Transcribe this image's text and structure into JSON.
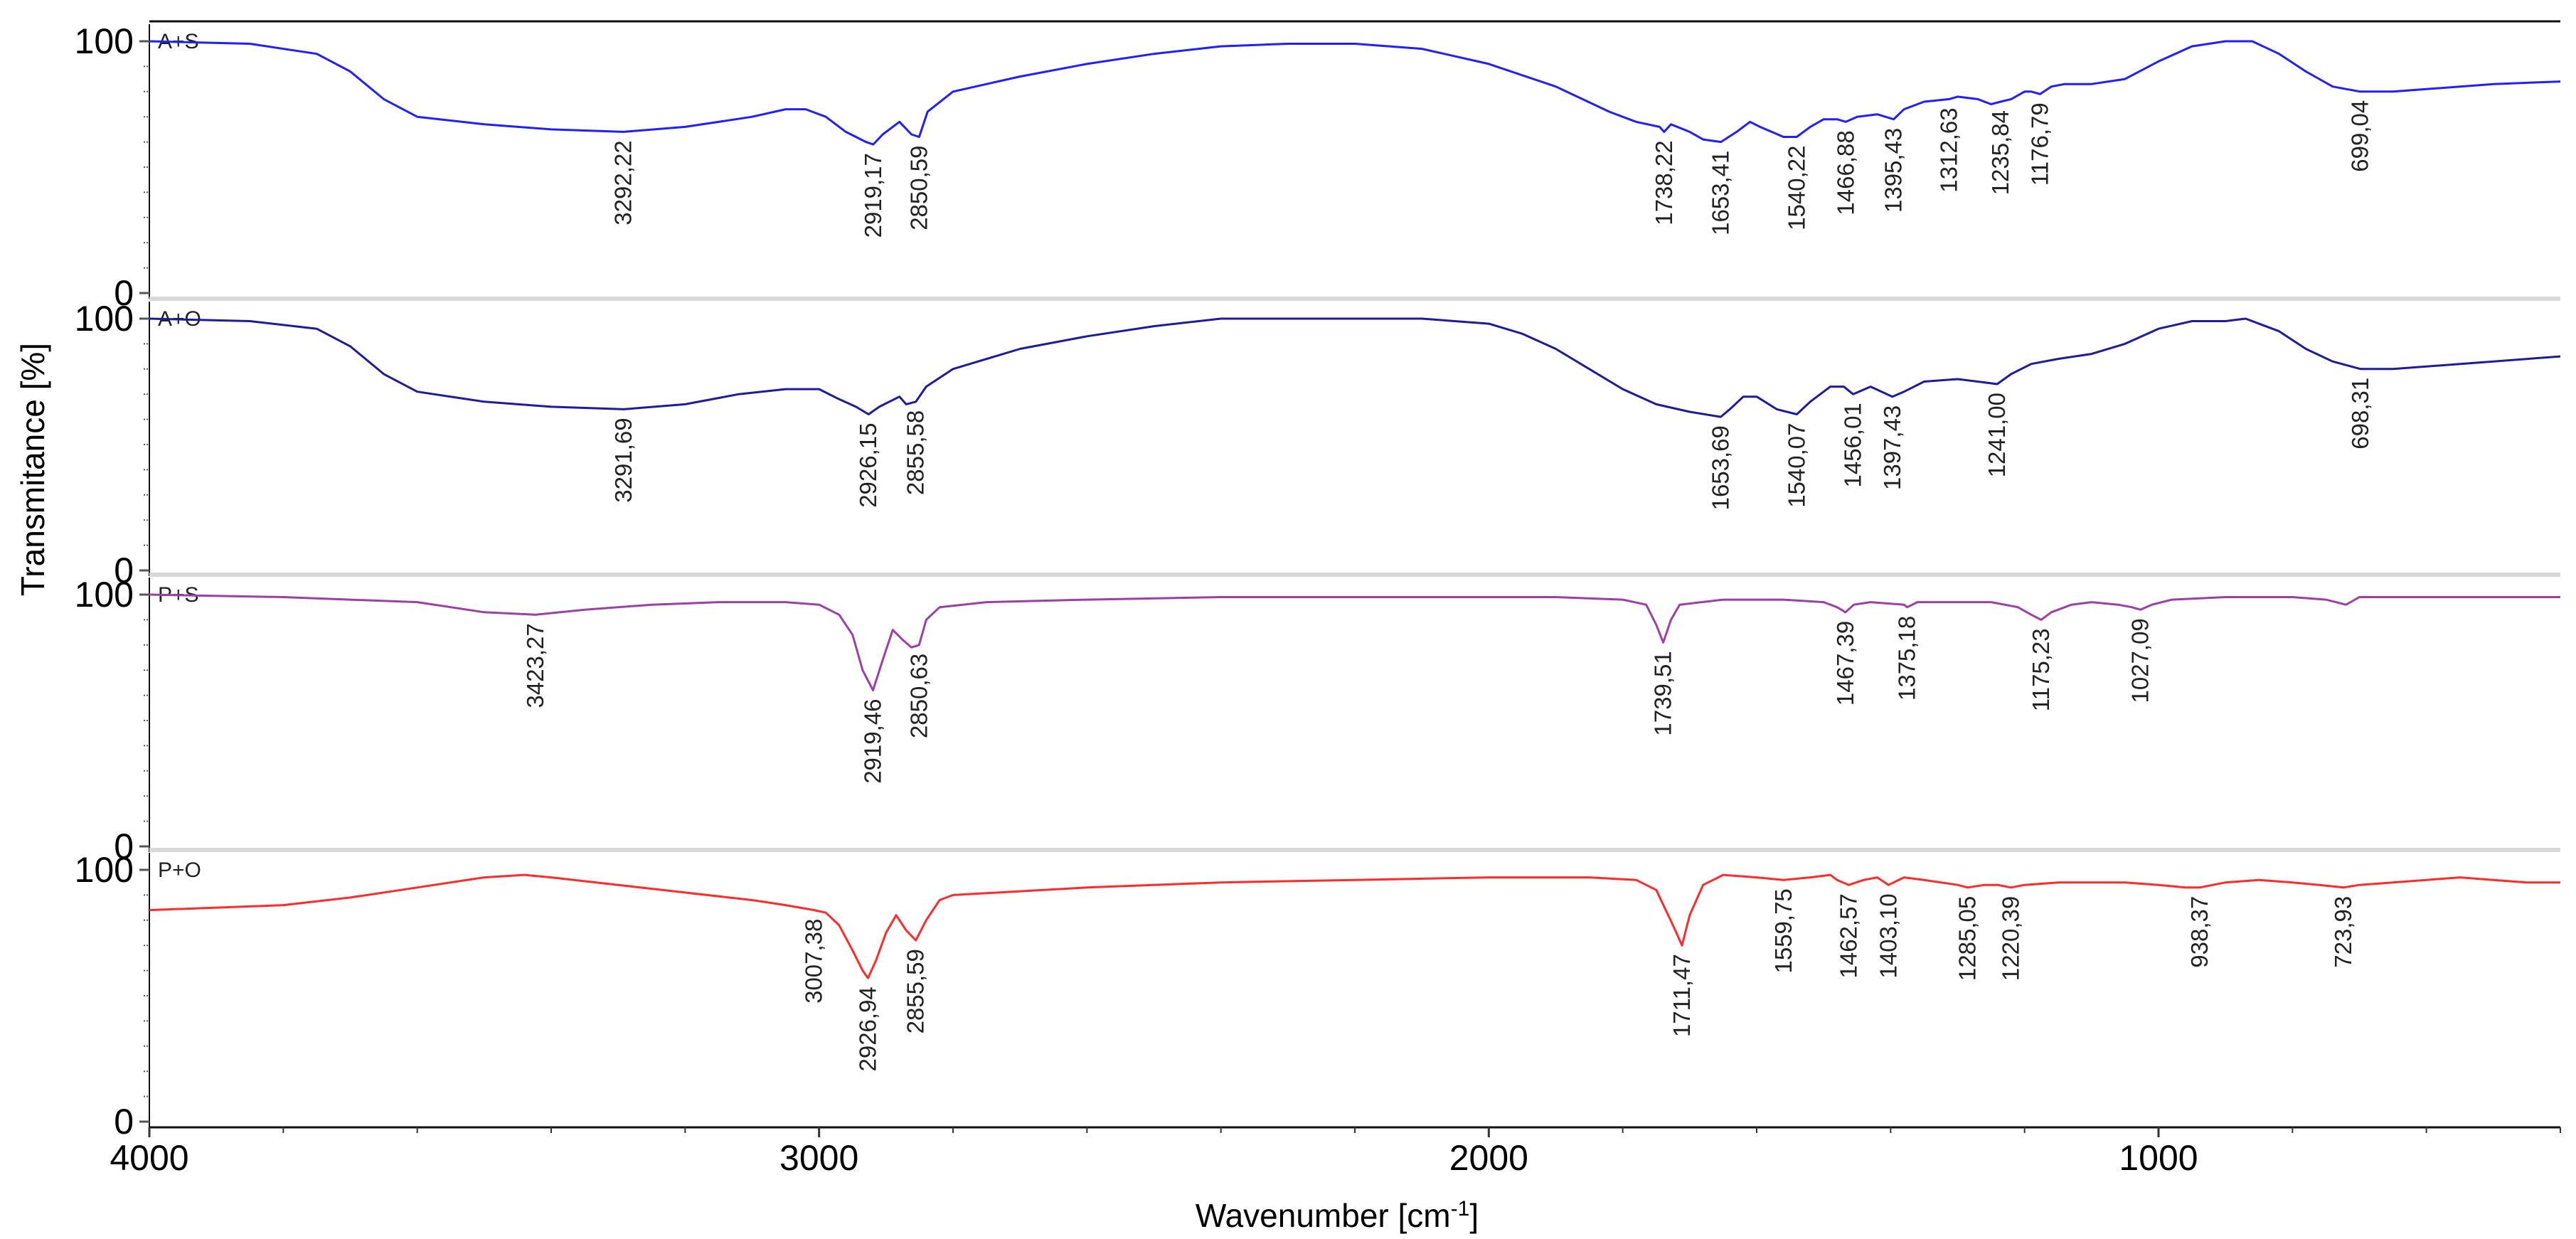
{
  "chart_data": {
    "type": "line",
    "xlabel": "Wavenumber [cm",
    "xlabel_sup": "-1",
    "xlabel_close": "]",
    "ylabel": "Transmitance [%]",
    "xlim": [
      4000,
      400
    ],
    "xticks": [
      4000,
      3000,
      2000,
      1000
    ],
    "yticks": [
      0,
      100
    ],
    "grid": false,
    "panels": [
      {
        "name": "A+S",
        "color": "#1f1fff",
        "points": [
          [
            4000,
            100
          ],
          [
            3850,
            99
          ],
          [
            3750,
            95
          ],
          [
            3700,
            88
          ],
          [
            3650,
            77
          ],
          [
            3600,
            70
          ],
          [
            3500,
            67
          ],
          [
            3400,
            65
          ],
          [
            3292.22,
            64
          ],
          [
            3200,
            66
          ],
          [
            3100,
            70
          ],
          [
            3050,
            73
          ],
          [
            3020,
            73
          ],
          [
            2990,
            70
          ],
          [
            2960,
            64
          ],
          [
            2930,
            60
          ],
          [
            2919.17,
            59
          ],
          [
            2905,
            63
          ],
          [
            2880,
            68
          ],
          [
            2862,
            63
          ],
          [
            2850.59,
            62
          ],
          [
            2838,
            72
          ],
          [
            2800,
            80
          ],
          [
            2700,
            86
          ],
          [
            2600,
            91
          ],
          [
            2500,
            95
          ],
          [
            2400,
            98
          ],
          [
            2300,
            99
          ],
          [
            2200,
            99
          ],
          [
            2100,
            97
          ],
          [
            2000,
            91
          ],
          [
            1900,
            82
          ],
          [
            1820,
            72
          ],
          [
            1780,
            68
          ],
          [
            1745,
            66
          ],
          [
            1738.22,
            64
          ],
          [
            1728,
            67
          ],
          [
            1700,
            64
          ],
          [
            1680,
            61
          ],
          [
            1653.41,
            60
          ],
          [
            1630,
            64
          ],
          [
            1610,
            68
          ],
          [
            1595,
            66
          ],
          [
            1560,
            62
          ],
          [
            1540.22,
            62
          ],
          [
            1520,
            66
          ],
          [
            1500,
            69
          ],
          [
            1480,
            69
          ],
          [
            1466.88,
            68
          ],
          [
            1450,
            70
          ],
          [
            1420,
            71
          ],
          [
            1395.43,
            69
          ],
          [
            1380,
            73
          ],
          [
            1350,
            76
          ],
          [
            1312.63,
            77
          ],
          [
            1300,
            78
          ],
          [
            1270,
            77
          ],
          [
            1250,
            75
          ],
          [
            1235.84,
            76
          ],
          [
            1220,
            77
          ],
          [
            1200,
            80
          ],
          [
            1190,
            80
          ],
          [
            1176.79,
            79
          ],
          [
            1160,
            82
          ],
          [
            1140,
            83
          ],
          [
            1100,
            83
          ],
          [
            1050,
            85
          ],
          [
            1000,
            92
          ],
          [
            950,
            98
          ],
          [
            900,
            100
          ],
          [
            860,
            100
          ],
          [
            820,
            95
          ],
          [
            780,
            88
          ],
          [
            740,
            82
          ],
          [
            699.04,
            80
          ],
          [
            650,
            80
          ],
          [
            600,
            81
          ],
          [
            500,
            83
          ],
          [
            400,
            84
          ]
        ],
        "peaks": [
          "3292,22",
          "2919,17",
          "2850,59",
          "1738,22",
          "1653,41",
          "1540,22",
          "1466,88",
          "1395,43",
          "1312,63",
          "1235,84",
          "1176,79",
          "699,04"
        ],
        "peak_positions": [
          3292.22,
          2919.17,
          2850.59,
          1738.22,
          1653.41,
          1540.22,
          1466.88,
          1395.43,
          1312.63,
          1235.84,
          1176.79,
          699.04
        ]
      },
      {
        "name": "A+O",
        "color": "#1c1c9e",
        "points": [
          [
            4000,
            100
          ],
          [
            3850,
            99
          ],
          [
            3750,
            96
          ],
          [
            3700,
            89
          ],
          [
            3650,
            78
          ],
          [
            3600,
            71
          ],
          [
            3500,
            67
          ],
          [
            3400,
            65
          ],
          [
            3291.69,
            64
          ],
          [
            3200,
            66
          ],
          [
            3120,
            70
          ],
          [
            3050,
            72
          ],
          [
            3000,
            72
          ],
          [
            2970,
            68
          ],
          [
            2945,
            65
          ],
          [
            2926.15,
            62
          ],
          [
            2910,
            65
          ],
          [
            2880,
            69
          ],
          [
            2870,
            66
          ],
          [
            2855.58,
            67
          ],
          [
            2840,
            73
          ],
          [
            2800,
            80
          ],
          [
            2700,
            88
          ],
          [
            2600,
            93
          ],
          [
            2500,
            97
          ],
          [
            2400,
            100
          ],
          [
            2300,
            100
          ],
          [
            2200,
            100
          ],
          [
            2100,
            100
          ],
          [
            2000,
            98
          ],
          [
            1950,
            94
          ],
          [
            1900,
            88
          ],
          [
            1850,
            80
          ],
          [
            1800,
            72
          ],
          [
            1750,
            66
          ],
          [
            1700,
            63
          ],
          [
            1653.69,
            61
          ],
          [
            1640,
            64
          ],
          [
            1620,
            69
          ],
          [
            1600,
            69
          ],
          [
            1570,
            64
          ],
          [
            1540.07,
            62
          ],
          [
            1520,
            67
          ],
          [
            1490,
            73
          ],
          [
            1470,
            73
          ],
          [
            1456.01,
            70
          ],
          [
            1430,
            73
          ],
          [
            1397.43,
            69
          ],
          [
            1380,
            71
          ],
          [
            1350,
            75
          ],
          [
            1300,
            76
          ],
          [
            1270,
            75
          ],
          [
            1241.0,
            74
          ],
          [
            1220,
            78
          ],
          [
            1190,
            82
          ],
          [
            1150,
            84
          ],
          [
            1100,
            86
          ],
          [
            1050,
            90
          ],
          [
            1000,
            96
          ],
          [
            950,
            99
          ],
          [
            900,
            99
          ],
          [
            870,
            100
          ],
          [
            820,
            95
          ],
          [
            780,
            88
          ],
          [
            740,
            83
          ],
          [
            698.31,
            80
          ],
          [
            650,
            80
          ],
          [
            600,
            81
          ],
          [
            500,
            83
          ],
          [
            400,
            85
          ]
        ],
        "peaks": [
          "3291,69",
          "2926,15",
          "2855,58",
          "1653,69",
          "1540,07",
          "1456,01",
          "1397,43",
          "1241,00",
          "698,31"
        ],
        "peak_positions": [
          3291.69,
          2926.15,
          2855.58,
          1653.69,
          1540.07,
          1456.01,
          1397.43,
          1241.0,
          698.31
        ]
      },
      {
        "name": "P+S",
        "color": "#9e3fa8",
        "points": [
          [
            4000,
            100
          ],
          [
            3800,
            99
          ],
          [
            3700,
            98
          ],
          [
            3600,
            97
          ],
          [
            3550,
            95
          ],
          [
            3500,
            93
          ],
          [
            3423.27,
            92
          ],
          [
            3350,
            94
          ],
          [
            3250,
            96
          ],
          [
            3150,
            97
          ],
          [
            3050,
            97
          ],
          [
            3000,
            96
          ],
          [
            2970,
            92
          ],
          [
            2950,
            84
          ],
          [
            2935,
            70
          ],
          [
            2919.46,
            62
          ],
          [
            2905,
            74
          ],
          [
            2890,
            86
          ],
          [
            2875,
            82
          ],
          [
            2862,
            79
          ],
          [
            2850.63,
            80
          ],
          [
            2840,
            90
          ],
          [
            2820,
            95
          ],
          [
            2750,
            97
          ],
          [
            2600,
            98
          ],
          [
            2400,
            99
          ],
          [
            2200,
            99
          ],
          [
            2000,
            99
          ],
          [
            1900,
            99
          ],
          [
            1800,
            98
          ],
          [
            1765,
            96
          ],
          [
            1750,
            88
          ],
          [
            1739.51,
            81
          ],
          [
            1728,
            90
          ],
          [
            1715,
            96
          ],
          [
            1650,
            98
          ],
          [
            1560,
            98
          ],
          [
            1500,
            97
          ],
          [
            1480,
            95
          ],
          [
            1467.39,
            93
          ],
          [
            1455,
            96
          ],
          [
            1430,
            97
          ],
          [
            1380,
            96
          ],
          [
            1375.18,
            95
          ],
          [
            1360,
            97
          ],
          [
            1300,
            97
          ],
          [
            1250,
            97
          ],
          [
            1210,
            95
          ],
          [
            1190,
            92
          ],
          [
            1175.23,
            90
          ],
          [
            1160,
            93
          ],
          [
            1130,
            96
          ],
          [
            1100,
            97
          ],
          [
            1060,
            96
          ],
          [
            1040,
            95
          ],
          [
            1027.09,
            94
          ],
          [
            1010,
            96
          ],
          [
            980,
            98
          ],
          [
            900,
            99
          ],
          [
            800,
            99
          ],
          [
            750,
            98
          ],
          [
            720,
            96
          ],
          [
            700,
            99
          ],
          [
            600,
            99
          ],
          [
            500,
            99
          ],
          [
            400,
            99
          ]
        ],
        "peaks": [
          "3423,27",
          "2919,46",
          "2850,63",
          "1739,51",
          "1467,39",
          "1375,18",
          "1175,23",
          "1027,09"
        ],
        "peak_positions": [
          3423.27,
          2919.46,
          2850.63,
          1739.51,
          1467.39,
          1375.18,
          1175.23,
          1027.09
        ]
      },
      {
        "name": "P+O",
        "color": "#ff2a2a",
        "points": [
          [
            4000,
            84
          ],
          [
            3900,
            85
          ],
          [
            3800,
            86
          ],
          [
            3700,
            89
          ],
          [
            3600,
            93
          ],
          [
            3500,
            97
          ],
          [
            3440,
            98
          ],
          [
            3400,
            97
          ],
          [
            3300,
            94
          ],
          [
            3200,
            91
          ],
          [
            3100,
            88
          ],
          [
            3050,
            86
          ],
          [
            3007.38,
            84
          ],
          [
            2990,
            83
          ],
          [
            2970,
            78
          ],
          [
            2950,
            68
          ],
          [
            2935,
            60
          ],
          [
            2926.94,
            57
          ],
          [
            2915,
            64
          ],
          [
            2900,
            75
          ],
          [
            2885,
            82
          ],
          [
            2870,
            76
          ],
          [
            2855.59,
            72
          ],
          [
            2840,
            80
          ],
          [
            2820,
            88
          ],
          [
            2800,
            90
          ],
          [
            2600,
            93
          ],
          [
            2400,
            95
          ],
          [
            2200,
            96
          ],
          [
            2000,
            97
          ],
          [
            1850,
            97
          ],
          [
            1780,
            96
          ],
          [
            1750,
            92
          ],
          [
            1725,
            78
          ],
          [
            1711.47,
            70
          ],
          [
            1700,
            82
          ],
          [
            1680,
            94
          ],
          [
            1650,
            98
          ],
          [
            1600,
            97
          ],
          [
            1559.75,
            96
          ],
          [
            1520,
            97
          ],
          [
            1490,
            98
          ],
          [
            1480,
            96
          ],
          [
            1462.57,
            94
          ],
          [
            1440,
            96
          ],
          [
            1420,
            97
          ],
          [
            1403.1,
            94
          ],
          [
            1380,
            97
          ],
          [
            1350,
            96
          ],
          [
            1300,
            94
          ],
          [
            1285.05,
            93
          ],
          [
            1260,
            94
          ],
          [
            1240,
            94
          ],
          [
            1220.39,
            93
          ],
          [
            1200,
            94
          ],
          [
            1150,
            95
          ],
          [
            1100,
            95
          ],
          [
            1050,
            95
          ],
          [
            1000,
            94
          ],
          [
            960,
            93
          ],
          [
            938.37,
            93
          ],
          [
            900,
            95
          ],
          [
            850,
            96
          ],
          [
            800,
            95
          ],
          [
            760,
            94
          ],
          [
            723.93,
            93
          ],
          [
            700,
            94
          ],
          [
            650,
            95
          ],
          [
            600,
            96
          ],
          [
            550,
            97
          ],
          [
            500,
            96
          ],
          [
            450,
            95
          ],
          [
            400,
            95
          ]
        ],
        "peaks": [
          "3007,38",
          "2926,94",
          "2855,59",
          "1711,47",
          "1559,75",
          "1462,57",
          "1403,10",
          "1285,05",
          "1220,39",
          "938,37",
          "723,93"
        ],
        "peak_positions": [
          3007.38,
          2926.94,
          2855.59,
          1711.47,
          1559.75,
          1462.57,
          1403.1,
          1285.05,
          1220.39,
          938.37,
          723.93
        ]
      }
    ]
  }
}
